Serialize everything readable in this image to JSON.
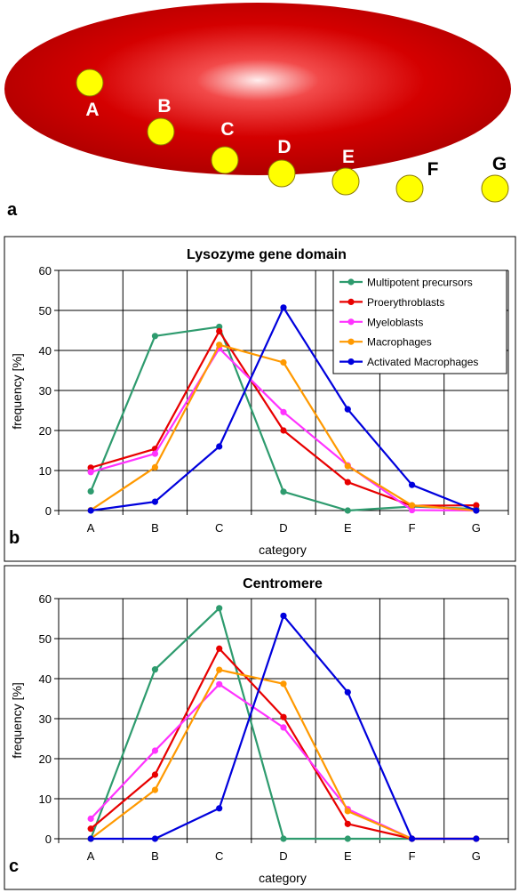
{
  "diagram": {
    "panel_label": "a",
    "nucleus_color": "#cc0000",
    "domain_color": "#ffff00",
    "categories": [
      "A",
      "B",
      "C",
      "D",
      "E",
      "F",
      "G"
    ]
  },
  "chart_data": [
    {
      "type": "line",
      "panel_label": "b",
      "title": "Lysozyme gene domain",
      "xlabel": "category",
      "ylabel": "frequency [%]",
      "categories": [
        "A",
        "B",
        "C",
        "D",
        "E",
        "F",
        "G"
      ],
      "ylim": [
        0,
        60
      ],
      "yticks": [
        0,
        10,
        20,
        30,
        40,
        50,
        60
      ],
      "grid": true,
      "legend": "top-right",
      "series": [
        {
          "name": "Multipotent precursors",
          "color": "#2e9b6e",
          "values": [
            4.8,
            43.6,
            45.9,
            4.7,
            0,
            1,
            0.4
          ]
        },
        {
          "name": "Proerythroblasts",
          "color": "#e80000",
          "values": [
            10.7,
            15.4,
            44.8,
            20,
            7.1,
            1.2,
            1.3
          ]
        },
        {
          "name": "Myeloblasts",
          "color": "#ff33ff",
          "values": [
            9.6,
            14.2,
            40.5,
            24.6,
            11.3,
            0.1,
            0
          ]
        },
        {
          "name": "Macrophages",
          "color": "#ff9900",
          "values": [
            0.1,
            10.8,
            41.4,
            37,
            11.1,
            1.3,
            0
          ]
        },
        {
          "name": "Activated Macrophages",
          "color": "#0000dd",
          "values": [
            0,
            2.2,
            16,
            50.7,
            25.3,
            6.4,
            0
          ]
        }
      ]
    },
    {
      "type": "line",
      "panel_label": "c",
      "title": "Centromere",
      "xlabel": "category",
      "ylabel": "frequency [%]",
      "categories": [
        "A",
        "B",
        "C",
        "D",
        "E",
        "F",
        "G"
      ],
      "ylim": [
        0,
        60
      ],
      "yticks": [
        0,
        10,
        20,
        30,
        40,
        50,
        60
      ],
      "grid": true,
      "series": [
        {
          "name": "Multipotent precursors",
          "color": "#2e9b6e",
          "values": [
            0,
            42.3,
            57.6,
            0,
            0,
            0,
            0
          ]
        },
        {
          "name": "Proerythroblasts",
          "color": "#e80000",
          "values": [
            2.5,
            16,
            47.5,
            30.4,
            3.7,
            0,
            0
          ]
        },
        {
          "name": "Myeloblasts",
          "color": "#ff33ff",
          "values": [
            5,
            22,
            38.6,
            27.8,
            7.4,
            0,
            0
          ]
        },
        {
          "name": "Macrophages",
          "color": "#ff9900",
          "values": [
            0,
            12.2,
            42.2,
            38.7,
            6.9,
            0,
            0
          ]
        },
        {
          "name": "Activated Macrophages",
          "color": "#0000dd",
          "values": [
            0,
            0,
            7.6,
            55.7,
            36.6,
            0,
            0
          ]
        }
      ]
    }
  ]
}
